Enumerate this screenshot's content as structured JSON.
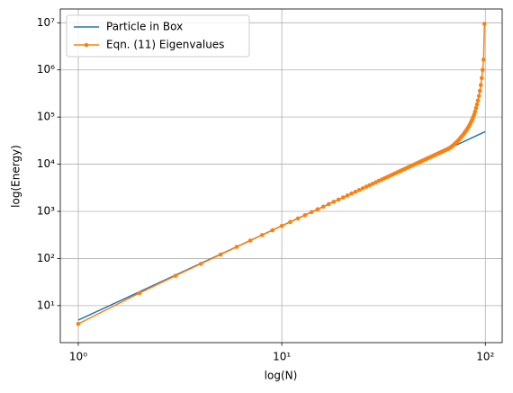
{
  "chart_data": {
    "type": "line",
    "xlabel": "log(N)",
    "ylabel": "log(Energy)",
    "xscale": "log",
    "yscale": "log",
    "grid": true,
    "legend": "upper left",
    "xlim": [
      0.816,
      121
    ],
    "ylim": [
      1.64,
      19600000
    ],
    "xticks": [
      {
        "value": 1,
        "label": "10⁰"
      },
      {
        "value": 10,
        "label": "10¹"
      },
      {
        "value": 100,
        "label": "10²"
      }
    ],
    "yticks": [
      {
        "value": 10,
        "label": "10¹"
      },
      {
        "value": 100,
        "label": "10²"
      },
      {
        "value": 1000,
        "label": "10³"
      },
      {
        "value": 10000,
        "label": "10⁴"
      },
      {
        "value": 100000,
        "label": "10⁵"
      },
      {
        "value": 1000000,
        "label": "10⁶"
      },
      {
        "value": 10000000,
        "label": "10⁷"
      }
    ],
    "series": [
      {
        "name": "Particle in Box",
        "color": "#1f77b4",
        "marker": false,
        "x": [
          1,
          2,
          5,
          10,
          20,
          50,
          100
        ],
        "values": [
          4.93,
          19.7,
          123,
          493,
          1970,
          12300,
          49300
        ]
      },
      {
        "name": "Eqn. (11) Eigenvalues",
        "color": "#ff7f0e",
        "marker": true,
        "x": [
          1,
          2,
          3,
          4,
          5,
          6,
          7,
          8,
          9,
          10,
          11,
          12,
          13,
          14,
          15,
          16,
          17,
          18,
          19,
          20,
          21,
          22,
          23,
          24,
          25,
          26,
          27,
          28,
          29,
          30,
          31,
          32,
          33,
          34,
          35,
          36,
          37,
          38,
          39,
          40,
          41,
          42,
          43,
          44,
          45,
          46,
          47,
          48,
          49,
          50,
          51,
          52,
          53,
          54,
          55,
          56,
          57,
          58,
          59,
          60,
          61,
          62,
          63,
          64,
          65,
          66,
          67,
          68,
          69,
          70,
          71,
          72,
          73,
          74,
          75,
          76,
          77,
          78,
          79,
          80,
          81,
          82,
          83,
          84,
          85,
          86,
          87,
          88,
          89,
          90,
          91,
          92,
          93,
          94,
          95,
          96,
          97,
          98,
          99
        ],
        "values": [
          4.1,
          18.5,
          43,
          77,
          121,
          176,
          240,
          314,
          398,
          491,
          594,
          707,
          830,
          963,
          1107,
          1260,
          1423,
          1595,
          1778,
          1970,
          2173,
          2384,
          2606,
          2838,
          3079,
          3331,
          3592,
          3862,
          4143,
          4434,
          4734,
          5044,
          5364,
          5693,
          6033,
          6382,
          6741,
          7109,
          7488,
          7876,
          8274,
          8682,
          9100,
          9527,
          9965,
          10412,
          10869,
          11336,
          11812,
          12299,
          12795,
          13301,
          13817,
          14342,
          14878,
          15423,
          15978,
          16543,
          17118,
          17702,
          18297,
          18901,
          19515,
          20139,
          20773,
          21500,
          22300,
          23300,
          24500,
          26000,
          27500,
          29000,
          30700,
          32500,
          35000,
          37500,
          40000,
          43000,
          46500,
          50000,
          54000,
          58500,
          63500,
          70000,
          78000,
          87000,
          98000,
          112000,
          130000,
          155000,
          185000,
          225000,
          280000,
          360000,
          480000,
          670000,
          1000000,
          1650000,
          9500000
        ]
      }
    ]
  }
}
